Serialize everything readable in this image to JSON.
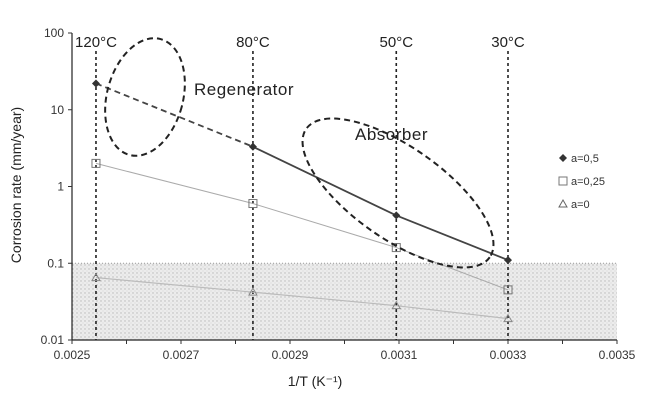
{
  "chart_data": {
    "type": "scatter",
    "xlabel": "1/T (K⁻¹)",
    "ylabel": "Corrosion rate (mm/year)",
    "xlim": [
      0.0025,
      0.0035
    ],
    "ylim": [
      0.01,
      100
    ],
    "yscale": "log",
    "x_ticks": [
      "0.0025",
      "0.0026",
      "0.0027",
      "0.0028",
      "0.0029",
      "0.0030",
      "0.0031",
      "0.0032",
      "0.0033",
      "0.0034",
      "0.0035"
    ],
    "x_tick_labels": [
      "0.0025",
      "0.0027",
      "0.0029",
      "0.0031",
      "0.0033",
      "0.0035"
    ],
    "y_tick_labels": [
      "100",
      "10",
      "1",
      "0.1",
      "0.01"
    ],
    "temperature_lines": [
      {
        "label": "120°C",
        "x": 0.002544
      },
      {
        "label": "80°C",
        "x": 0.002832
      },
      {
        "label": "50°C",
        "x": 0.003095
      },
      {
        "label": "30°C",
        "x": 0.0033
      }
    ],
    "shaded_region": {
      "y_from": 0.01,
      "y_to": 0.1
    },
    "series": [
      {
        "name": "a=0,5",
        "color": "#444444",
        "marker": "diamond",
        "x": [
          0.002544,
          0.002832,
          0.003095,
          0.0033
        ],
        "y": [
          22,
          3.3,
          0.42,
          0.11
        ]
      },
      {
        "name": "a=0,25",
        "color": "#aaaaaa",
        "marker": "square",
        "x": [
          0.002544,
          0.002832,
          0.003095,
          0.0033
        ],
        "y": [
          2.0,
          0.6,
          0.16,
          0.045
        ]
      },
      {
        "name": "a=0",
        "color": "#bbbbbb",
        "marker": "triangle",
        "x": [
          0.002544,
          0.002832,
          0.003095,
          0.0033
        ],
        "y": [
          0.065,
          0.042,
          0.028,
          0.019
        ]
      }
    ],
    "annotations": [
      "Regenerator",
      "Absorber"
    ]
  }
}
